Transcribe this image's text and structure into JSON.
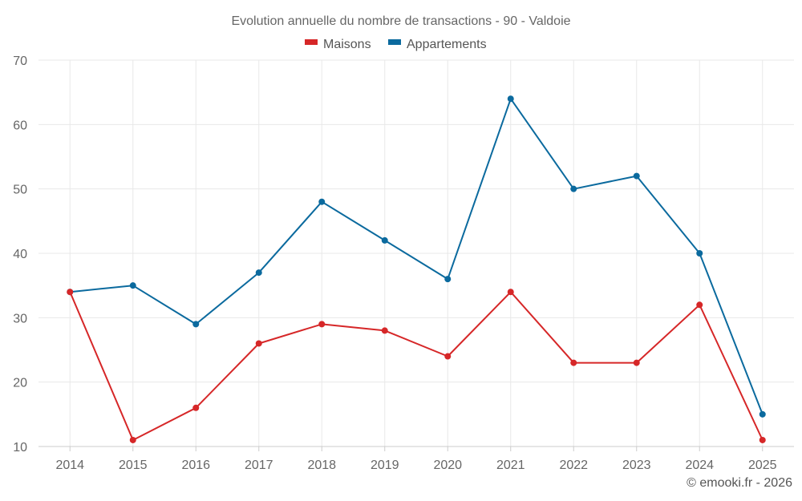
{
  "chart_data": {
    "type": "line",
    "title": "Evolution annuelle du nombre de transactions - 90 - Valdoie",
    "xlabel": "",
    "ylabel": "",
    "categories": [
      "2014",
      "2015",
      "2016",
      "2017",
      "2018",
      "2019",
      "2020",
      "2021",
      "2022",
      "2023",
      "2024",
      "2025"
    ],
    "ylim": [
      10,
      70
    ],
    "yticks": [
      10,
      20,
      30,
      40,
      50,
      60,
      70
    ],
    "grid": true,
    "legend_position": "top-center",
    "series": [
      {
        "name": "Maisons",
        "color": "#d62728",
        "values": [
          34,
          11,
          16,
          26,
          29,
          28,
          24,
          34,
          23,
          23,
          32,
          11
        ]
      },
      {
        "name": "Appartements",
        "color": "#0b6a9e",
        "values": [
          34,
          35,
          29,
          37,
          48,
          42,
          36,
          64,
          50,
          52,
          40,
          15
        ]
      }
    ]
  },
  "credit": "© emooki.fr - 2026"
}
